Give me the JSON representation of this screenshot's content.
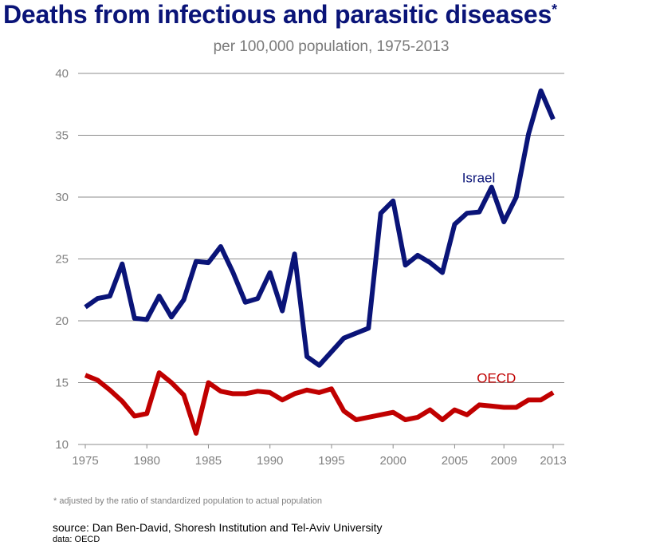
{
  "header": {
    "title": "Deaths from infectious and parasitic diseases",
    "title_mark": "*",
    "subtitle": "per 100,000 population, 1975-2013"
  },
  "footer": {
    "footnote": "* adjusted by the ratio of standardized population to actual population",
    "source": "source: Dan Ben-David, Shoresh Institution and Tel-Aviv University",
    "data_source": "data: OECD"
  },
  "colors": {
    "israel": "#0a1478",
    "oecd": "#c00000",
    "grid": "#8c8c8c",
    "tick_text": "#808080"
  },
  "chart_data": {
    "type": "line",
    "title": "Deaths from infectious and parasitic diseases",
    "subtitle": "per 100,000 population, 1975-2013",
    "xlim": [
      1975,
      2013
    ],
    "ylim": [
      10,
      40
    ],
    "yticks": [
      10,
      15,
      20,
      25,
      30,
      35,
      40
    ],
    "xticks": [
      1975,
      1980,
      1985,
      1990,
      1995,
      2000,
      2005,
      2009,
      2013
    ],
    "grid": "horizontal",
    "x": [
      1975,
      1976,
      1977,
      1978,
      1979,
      1980,
      1981,
      1982,
      1983,
      1984,
      1985,
      1986,
      1987,
      1988,
      1989,
      1990,
      1991,
      1992,
      1993,
      1994,
      1995,
      1996,
      1997,
      1998,
      1999,
      2000,
      2001,
      2002,
      2003,
      2004,
      2005,
      2006,
      2007,
      2008,
      2009,
      2010,
      2011,
      2012,
      2013
    ],
    "series": [
      {
        "name": "Israel",
        "values": [
          21.1,
          21.8,
          22.0,
          24.6,
          20.2,
          20.1,
          22.0,
          20.3,
          21.7,
          24.8,
          24.7,
          26.0,
          23.9,
          21.5,
          21.8,
          23.9,
          20.8,
          25.4,
          17.1,
          16.4,
          17.5,
          18.6,
          19.0,
          19.4,
          28.7,
          29.7,
          24.5,
          25.3,
          24.7,
          23.9,
          27.8,
          28.7,
          28.8,
          30.8,
          28.0,
          30.0,
          35.1,
          38.6,
          36.3
        ]
      },
      {
        "name": "OECD",
        "values": [
          15.6,
          15.2,
          14.4,
          13.5,
          12.3,
          12.5,
          15.8,
          15.0,
          14.0,
          10.9,
          15.0,
          14.3,
          14.1,
          14.1,
          14.3,
          14.2,
          13.6,
          14.1,
          14.4,
          14.2,
          14.5,
          12.7,
          12.0,
          12.2,
          12.4,
          12.6,
          12.0,
          12.2,
          12.8,
          12.0,
          12.8,
          12.4,
          13.2,
          13.1,
          13.0,
          13.0,
          13.6,
          13.6,
          14.2
        ]
      }
    ]
  }
}
